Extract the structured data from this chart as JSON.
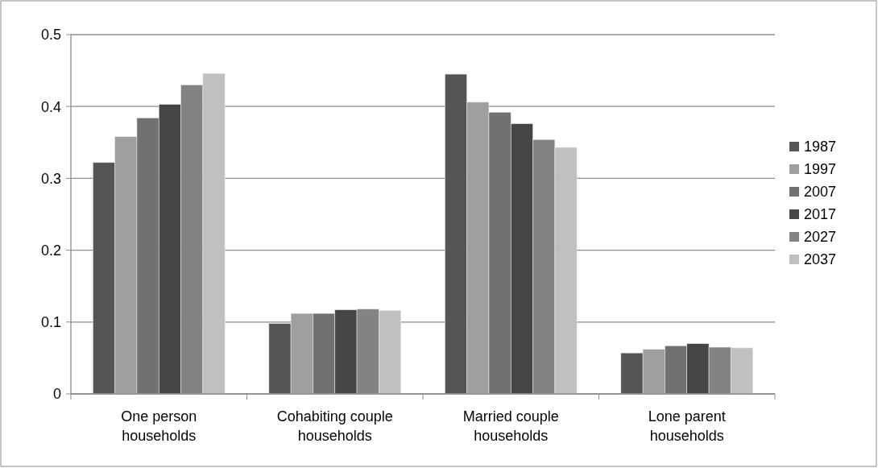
{
  "chart_data": {
    "type": "bar",
    "categories": [
      "One person households",
      "Cohabiting couple households",
      "Married couple households",
      "Lone parent households"
    ],
    "series": [
      {
        "name": "1987",
        "color": "#555555",
        "values": [
          0.322,
          0.098,
          0.445,
          0.057
        ]
      },
      {
        "name": "1997",
        "color": "#9f9f9f",
        "values": [
          0.358,
          0.112,
          0.406,
          0.062
        ]
      },
      {
        "name": "2007",
        "color": "#717171",
        "values": [
          0.384,
          0.112,
          0.392,
          0.067
        ]
      },
      {
        "name": "2017",
        "color": "#464646",
        "values": [
          0.403,
          0.117,
          0.376,
          0.07
        ]
      },
      {
        "name": "2027",
        "color": "#838383",
        "values": [
          0.43,
          0.118,
          0.354,
          0.065
        ]
      },
      {
        "name": "2037",
        "color": "#c0c0c0",
        "values": [
          0.446,
          0.116,
          0.343,
          0.064
        ]
      }
    ],
    "ylim": [
      0,
      0.5
    ],
    "yticks": [
      0,
      0.1,
      0.2,
      0.3,
      0.4,
      0.5
    ],
    "grid": "y",
    "legend": "right"
  }
}
